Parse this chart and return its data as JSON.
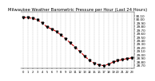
{
  "title": "Milwaukee Weather Barometric Pressure per Hour (Last 24 Hours)",
  "hours": [
    0,
    1,
    2,
    3,
    4,
    5,
    6,
    7,
    8,
    9,
    10,
    11,
    12,
    13,
    14,
    15,
    16,
    17,
    18,
    19,
    20,
    21,
    22,
    23
  ],
  "pressure": [
    30.05,
    30.04,
    30.02,
    29.98,
    29.9,
    29.78,
    29.72,
    29.65,
    29.55,
    29.44,
    29.32,
    29.2,
    29.08,
    28.95,
    28.83,
    28.75,
    28.7,
    28.68,
    28.72,
    28.78,
    28.82,
    28.85,
    28.88,
    28.9
  ],
  "line_color": "#cc0000",
  "marker_color": "#000000",
  "bg_color": "#ffffff",
  "grid_color": "#999999",
  "title_fontsize": 3.8,
  "tick_fontsize": 3.0,
  "ylim_min": 28.6,
  "ylim_max": 30.2,
  "ytick_step": 0.1,
  "xlim_min": -0.5,
  "xlim_max": 23.5
}
